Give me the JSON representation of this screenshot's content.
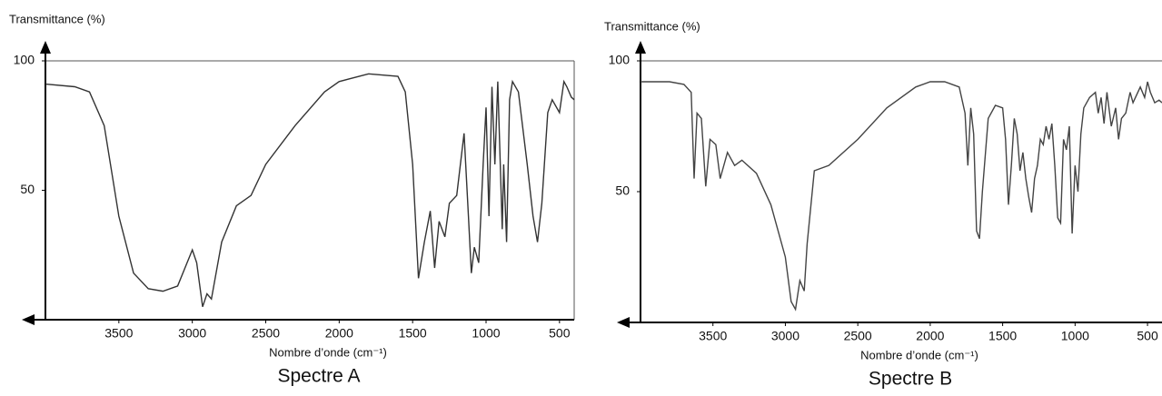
{
  "chart_data": [
    {
      "type": "line",
      "y_label": "Transmittance (%)",
      "x_label": "Nombre d’onde (cm⁻¹)",
      "caption": "Spectre A",
      "color": "#333333",
      "xlim": [
        4000,
        400
      ],
      "ylim": [
        0,
        100
      ],
      "xticks": [
        3500,
        3000,
        2500,
        2000,
        1500,
        1000,
        500
      ],
      "yticks": [
        50,
        100
      ],
      "x": [
        4000,
        3800,
        3700,
        3600,
        3500,
        3400,
        3300,
        3200,
        3100,
        3050,
        3000,
        2970,
        2930,
        2900,
        2870,
        2800,
        2700,
        2600,
        2500,
        2300,
        2100,
        2000,
        1800,
        1600,
        1550,
        1500,
        1460,
        1420,
        1380,
        1350,
        1320,
        1280,
        1250,
        1200,
        1150,
        1120,
        1100,
        1080,
        1050,
        1020,
        1000,
        980,
        960,
        940,
        920,
        890,
        880,
        860,
        840,
        820,
        780,
        720,
        680,
        650,
        620,
        580,
        550,
        500,
        470,
        450,
        420,
        400
      ],
      "values": [
        91,
        90,
        88,
        75,
        40,
        18,
        12,
        11,
        13,
        20,
        27,
        22,
        5,
        10,
        8,
        30,
        44,
        48,
        60,
        75,
        88,
        92,
        95,
        94,
        88,
        60,
        16,
        30,
        42,
        20,
        38,
        32,
        45,
        48,
        72,
        40,
        18,
        28,
        22,
        60,
        82,
        40,
        90,
        60,
        92,
        35,
        60,
        30,
        85,
        92,
        88,
        60,
        40,
        30,
        45,
        80,
        85,
        80,
        92,
        90,
        86,
        85
      ]
    },
    {
      "type": "line",
      "y_label": "Transmittance (%)",
      "x_label": "Nombre d’onde (cm⁻¹)",
      "caption": "Spectre B",
      "color": "#444444",
      "xlim": [
        4000,
        400
      ],
      "ylim": [
        0,
        100
      ],
      "xticks": [
        3500,
        3000,
        2500,
        2000,
        1500,
        1000,
        500
      ],
      "yticks": [
        50,
        100
      ],
      "x": [
        4000,
        3800,
        3700,
        3650,
        3630,
        3610,
        3580,
        3550,
        3520,
        3480,
        3450,
        3400,
        3350,
        3300,
        3200,
        3100,
        3000,
        2960,
        2930,
        2900,
        2870,
        2850,
        2800,
        2700,
        2500,
        2300,
        2100,
        2000,
        1900,
        1800,
        1760,
        1740,
        1720,
        1700,
        1680,
        1660,
        1640,
        1600,
        1550,
        1500,
        1480,
        1460,
        1440,
        1420,
        1400,
        1380,
        1360,
        1340,
        1320,
        1300,
        1280,
        1260,
        1240,
        1220,
        1200,
        1180,
        1160,
        1140,
        1120,
        1100,
        1080,
        1060,
        1040,
        1020,
        1000,
        980,
        960,
        940,
        900,
        860,
        840,
        820,
        800,
        780,
        750,
        720,
        700,
        680,
        650,
        620,
        600,
        550,
        520,
        500,
        480,
        450,
        420,
        400
      ],
      "values": [
        92,
        92,
        91,
        88,
        55,
        80,
        78,
        52,
        70,
        68,
        55,
        65,
        60,
        62,
        57,
        45,
        25,
        8,
        5,
        16,
        12,
        30,
        58,
        60,
        70,
        82,
        90,
        92,
        92,
        90,
        80,
        60,
        82,
        72,
        35,
        32,
        50,
        78,
        83,
        82,
        70,
        45,
        60,
        78,
        72,
        58,
        65,
        55,
        48,
        42,
        55,
        60,
        70,
        68,
        75,
        70,
        76,
        60,
        40,
        38,
        70,
        66,
        75,
        34,
        60,
        50,
        72,
        82,
        86,
        88,
        80,
        86,
        76,
        88,
        75,
        82,
        70,
        78,
        80,
        88,
        84,
        90,
        86,
        92,
        88,
        84,
        85,
        84
      ]
    }
  ]
}
